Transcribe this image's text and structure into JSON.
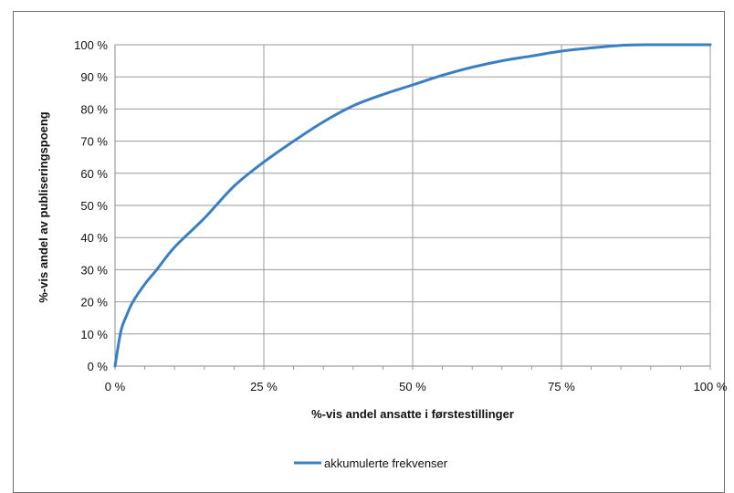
{
  "chart_data": {
    "type": "line",
    "title": "",
    "xlabel": "%-vis andel ansatte i førstestillinger",
    "ylabel": "%-vis andel av publiseringspoeng",
    "xlim": [
      0,
      100
    ],
    "ylim": [
      0,
      100
    ],
    "x_ticks": [
      "0 %",
      "25 %",
      "50 %",
      "75 %",
      "100 %"
    ],
    "y_ticks": [
      "0 %",
      "10 %",
      "20 %",
      "30 %",
      "40 %",
      "50 %",
      "60 %",
      "70 %",
      "80 %",
      "90 %",
      "100 %"
    ],
    "grid": true,
    "legend_position": "bottom-center",
    "series": [
      {
        "name": "akkumulerte frekvenser",
        "color": "#3a7fc4",
        "x": [
          0,
          1,
          2,
          3,
          5,
          7,
          10,
          15,
          20,
          25,
          30,
          35,
          40,
          45,
          50,
          55,
          60,
          65,
          70,
          75,
          80,
          85,
          90,
          95,
          100
        ],
        "y": [
          0,
          11,
          16,
          20,
          25.5,
          30,
          37,
          46,
          56,
          63.5,
          70,
          76,
          81,
          84.5,
          87.5,
          90.5,
          93,
          95,
          96.5,
          98,
          99,
          99.8,
          100,
          100,
          100
        ]
      }
    ]
  }
}
